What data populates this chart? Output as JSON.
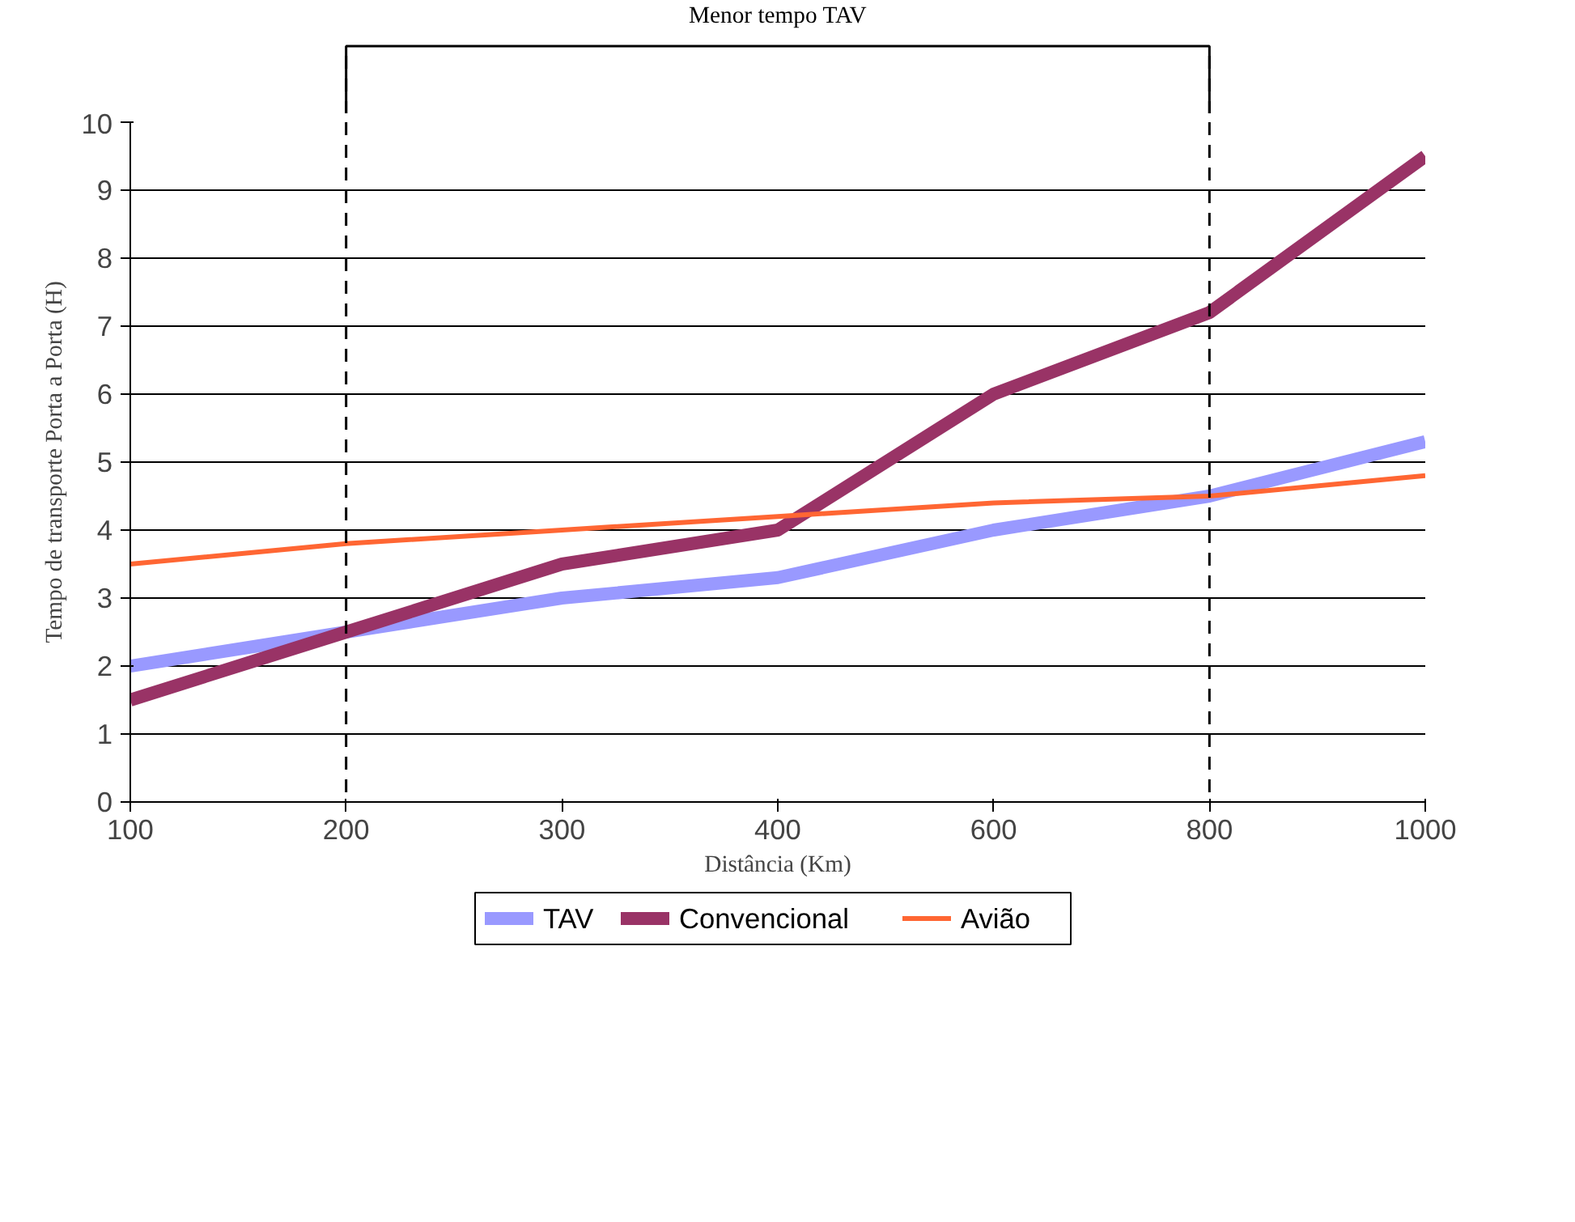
{
  "chart_data": {
    "type": "line",
    "xlabel": "Distância (Km)",
    "ylabel": "Tempo de transporte Porta a Porta (H)",
    "categories": [
      "100",
      "200",
      "300",
      "400",
      "600",
      "800",
      "1000"
    ],
    "series": [
      {
        "name": "TAV",
        "color": "#9999ff",
        "values": [
          2.0,
          2.5,
          3.0,
          3.3,
          4.0,
          4.5,
          5.3
        ]
      },
      {
        "name": "Convencional",
        "color": "#993366",
        "values": [
          1.5,
          2.5,
          3.5,
          4.0,
          6.0,
          7.2,
          9.5
        ]
      },
      {
        "name": "Avião",
        "color": "#ff6633",
        "values": [
          3.5,
          3.8,
          4.0,
          4.2,
          4.4,
          4.5,
          4.8
        ]
      }
    ],
    "ylim": [
      0,
      10
    ],
    "yticks": [
      0,
      1,
      2,
      3,
      4,
      5,
      6,
      7,
      8,
      9,
      10
    ],
    "grid": "y",
    "legend": "bottom",
    "marker": "none",
    "line_style": "solid",
    "ref_lines": [
      {
        "axis": "x",
        "value": "200",
        "line_style": "dashed"
      },
      {
        "axis": "x",
        "value": "800",
        "line_style": "dashed"
      }
    ],
    "annotations": [
      "Menor tempo TAV"
    ]
  }
}
